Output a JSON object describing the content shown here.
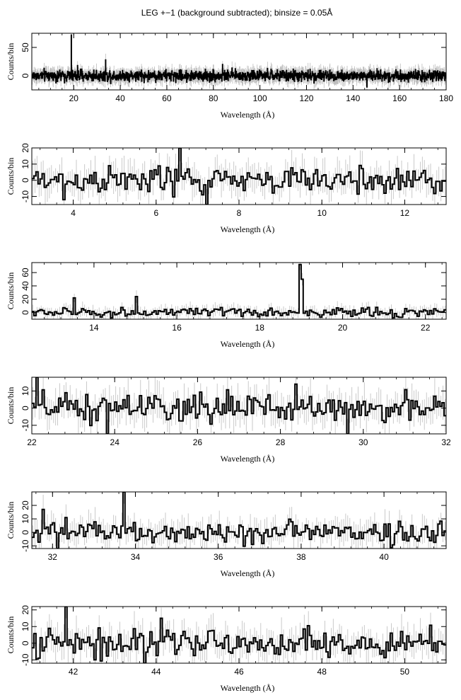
{
  "title": "LEG +−1 (background subtracted); binsize = 0.05Å",
  "chart_data": [
    {
      "type": "line",
      "xlabel": "Wavelength (Å)",
      "ylabel": "Counts/bin",
      "xlim": [
        2,
        180
      ],
      "ylim": [
        -25,
        75
      ],
      "xticks": [
        20,
        40,
        60,
        80,
        100,
        120,
        140,
        160,
        180
      ],
      "yticks": [
        0,
        50
      ],
      "noise": 7,
      "errorbar": 9,
      "peaks": [
        {
          "x": 19.0,
          "y": 72
        },
        {
          "x": 33.7,
          "y": 28
        },
        {
          "x": 21.6,
          "y": 18
        },
        {
          "x": 84,
          "y": 20
        },
        {
          "x": 146,
          "y": -20
        }
      ]
    },
    {
      "type": "line",
      "xlabel": "Wavelength (Å)",
      "ylabel": "Counts/bin",
      "xlim": [
        3,
        13
      ],
      "ylim": [
        -15,
        20
      ],
      "xticks": [
        4,
        6,
        8,
        10,
        12
      ],
      "yticks": [
        -10,
        0,
        10,
        20
      ],
      "noise": 6,
      "errorbar": 8,
      "peaks": [
        {
          "x": 6.6,
          "y": 20
        },
        {
          "x": 7.2,
          "y": -15
        },
        {
          "x": 3.75,
          "y": -12
        }
      ]
    },
    {
      "type": "line",
      "xlabel": "Wavelength (Å)",
      "ylabel": "Counts/bin",
      "xlim": [
        12.5,
        22.5
      ],
      "ylim": [
        -10,
        75
      ],
      "xticks": [
        14,
        16,
        18,
        20,
        22
      ],
      "yticks": [
        0,
        20,
        40,
        60
      ],
      "noise": 5,
      "errorbar": 8,
      "peaks": [
        {
          "x": 18.97,
          "y": 72
        },
        {
          "x": 19.02,
          "y": 50
        },
        {
          "x": 13.5,
          "y": 22
        },
        {
          "x": 15.0,
          "y": 24
        },
        {
          "x": 14.4,
          "y": -8
        }
      ]
    },
    {
      "type": "line",
      "xlabel": "Wavelength (Å)",
      "ylabel": "Counts/bin",
      "xlim": [
        22,
        32
      ],
      "ylim": [
        -15,
        18
      ],
      "xticks": [
        22,
        24,
        26,
        28,
        30,
        32
      ],
      "yticks": [
        -10,
        0,
        10
      ],
      "noise": 6,
      "errorbar": 8,
      "peaks": [
        {
          "x": 22.12,
          "y": 18
        },
        {
          "x": 23.82,
          "y": -15
        },
        {
          "x": 29.65,
          "y": -15
        },
        {
          "x": 28.4,
          "y": 14
        }
      ]
    },
    {
      "type": "line",
      "xlabel": "Wavelength (Å)",
      "ylabel": "Counts/bin",
      "xlim": [
        31.5,
        41.5
      ],
      "ylim": [
        -12,
        30
      ],
      "xticks": [
        32,
        34,
        36,
        38,
        40
      ],
      "yticks": [
        -10,
        0,
        10,
        20
      ],
      "noise": 6,
      "errorbar": 8,
      "peaks": [
        {
          "x": 33.72,
          "y": 30
        },
        {
          "x": 32.1,
          "y": -12
        },
        {
          "x": 31.75,
          "y": 17
        }
      ]
    },
    {
      "type": "line",
      "xlabel": "Wavelength (Å)",
      "ylabel": "Counts/bin",
      "xlim": [
        41,
        51
      ],
      "ylim": [
        -12,
        22
      ],
      "xticks": [
        42,
        44,
        46,
        48,
        50
      ],
      "yticks": [
        -10,
        0,
        10,
        20
      ],
      "noise": 6,
      "errorbar": 8,
      "peaks": [
        {
          "x": 41.82,
          "y": 22
        },
        {
          "x": 43.7,
          "y": -12
        },
        {
          "x": 44.1,
          "y": 15
        },
        {
          "x": 42.55,
          "y": -10
        }
      ]
    }
  ]
}
